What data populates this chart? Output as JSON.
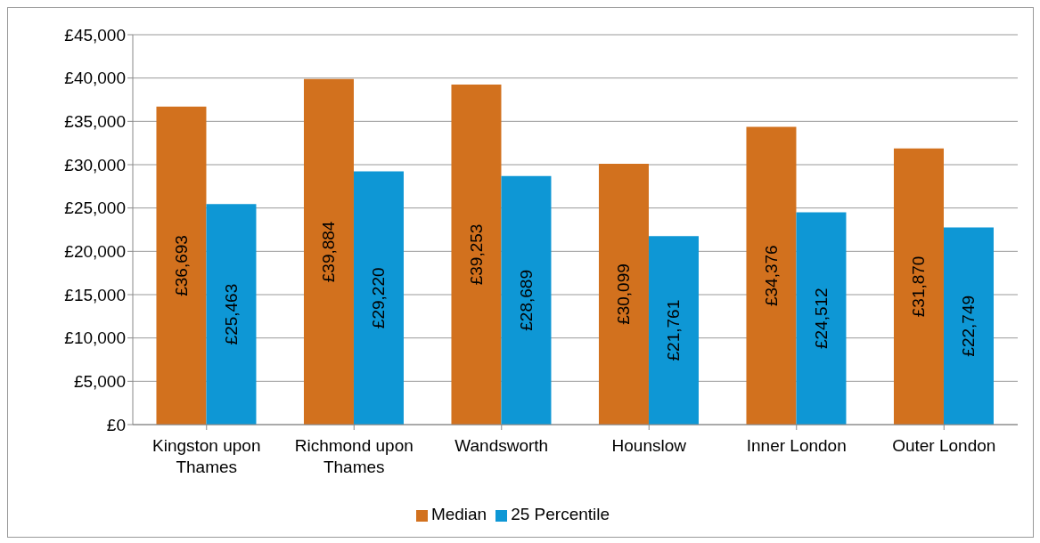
{
  "chart_data": {
    "type": "bar",
    "categories": [
      "Kingston upon Thames",
      "Richmond upon Thames",
      "Wandsworth",
      "Hounslow",
      "Inner London",
      "Outer London"
    ],
    "series": [
      {
        "name": "Median",
        "color": "#d2711e",
        "values": [
          36693,
          39884,
          39253,
          30099,
          34376,
          31870
        ],
        "value_labels": [
          "£36,693",
          "£39,884",
          "£39,253",
          "£30,099",
          "£34,376",
          "£31,870"
        ]
      },
      {
        "name": "25 Percentile",
        "color": "#0e97d5",
        "values": [
          25463,
          29220,
          28689,
          21761,
          24512,
          22749
        ],
        "value_labels": [
          "£25,463",
          "£29,220",
          "£28,689",
          "£21,761",
          "£24,512",
          "£22,749"
        ]
      }
    ],
    "ylim": [
      0,
      45000
    ],
    "yticks": [
      {
        "value": 0,
        "label": "£0"
      },
      {
        "value": 5000,
        "label": "£5,000"
      },
      {
        "value": 10000,
        "label": "£10,000"
      },
      {
        "value": 15000,
        "label": "£15,000"
      },
      {
        "value": 20000,
        "label": "£20,000"
      },
      {
        "value": 25000,
        "label": "£25,000"
      },
      {
        "value": 30000,
        "label": "£30,000"
      },
      {
        "value": 35000,
        "label": "£35,000"
      },
      {
        "value": 40000,
        "label": "£40,000"
      },
      {
        "value": 45000,
        "label": "£45,000"
      }
    ],
    "grid": "y",
    "legend": "bottom"
  }
}
